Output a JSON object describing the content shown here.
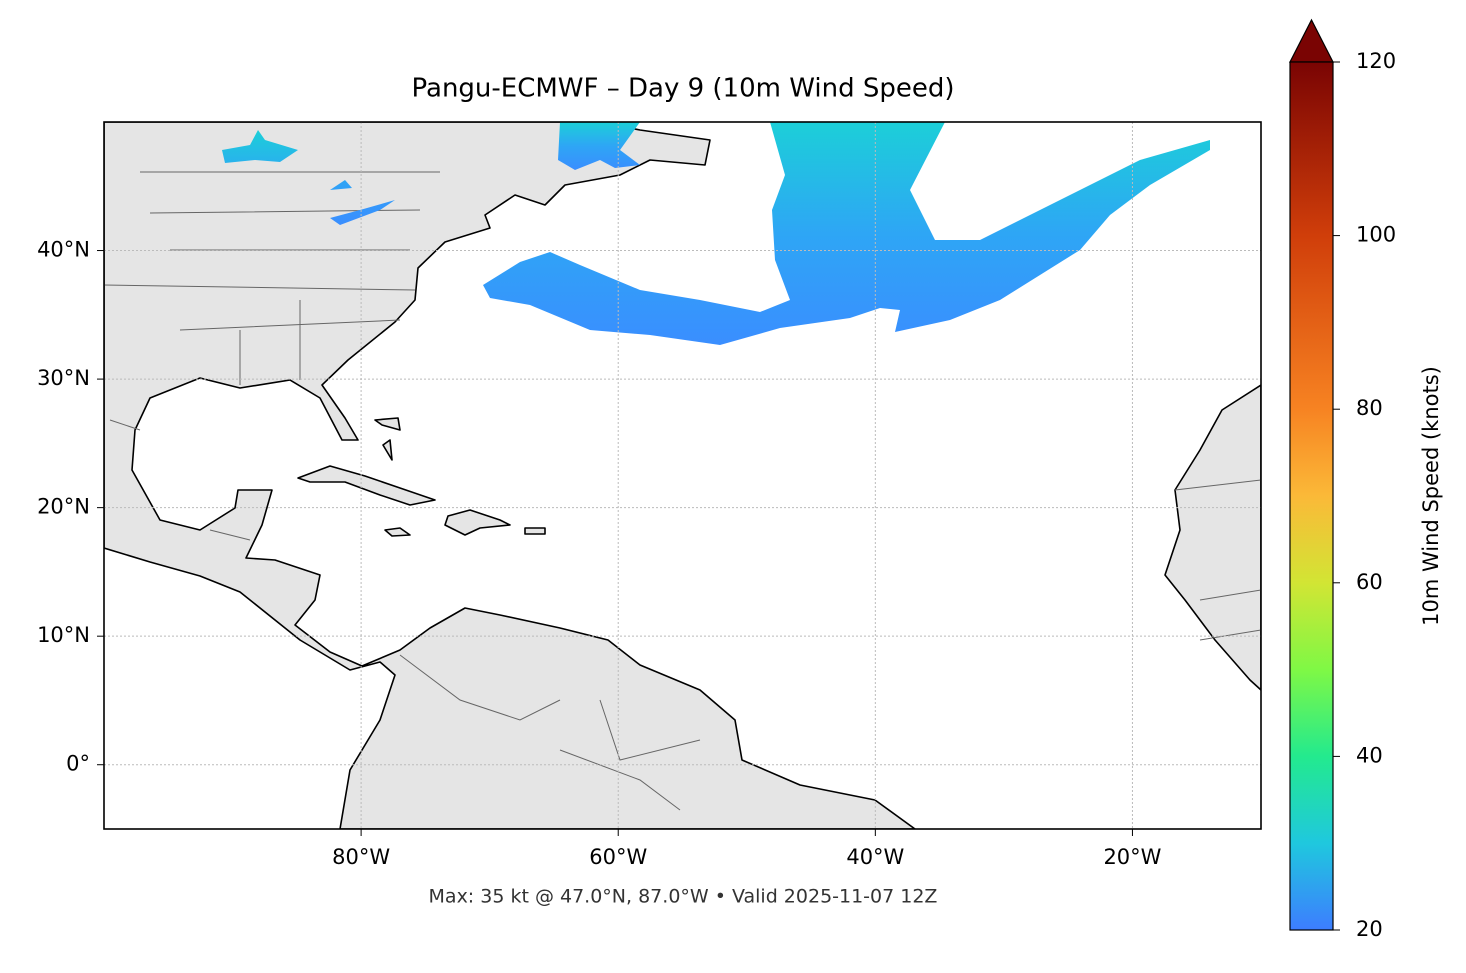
{
  "chart_data": {
    "type": "map",
    "title": "Pangu-ECMWF – Day 9 (10m Wind Speed)",
    "footer": "Max: 35 kt @ 47.0°N, 87.0°W • Valid 2025-11-07 12Z",
    "xlim": [
      -100,
      -10
    ],
    "ylim": [
      -5,
      50
    ],
    "xticks": [
      {
        "value": -80,
        "label": "80°W"
      },
      {
        "value": -60,
        "label": "60°W"
      },
      {
        "value": -40,
        "label": "40°W"
      },
      {
        "value": -20,
        "label": "20°W"
      }
    ],
    "yticks": [
      {
        "value": 0,
        "label": "0°"
      },
      {
        "value": 10,
        "label": "10°N"
      },
      {
        "value": 20,
        "label": "20°N"
      },
      {
        "value": 30,
        "label": "30°N"
      },
      {
        "value": 40,
        "label": "40°N"
      }
    ],
    "grid": true,
    "colorbar": {
      "label": "10m Wind Speed (knots)",
      "lim": [
        20,
        120
      ],
      "ticks": [
        20,
        40,
        60,
        80,
        100,
        120
      ]
    }
  }
}
